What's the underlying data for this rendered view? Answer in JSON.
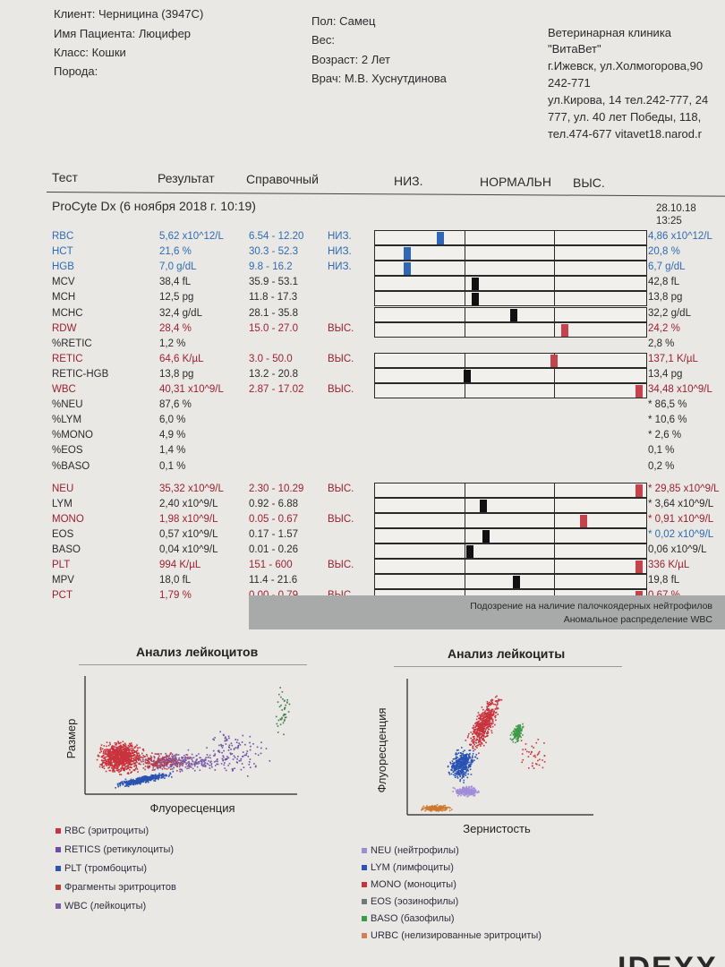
{
  "patient": {
    "client": "Клиент: Черницина (3947С)",
    "name": "Имя Пациента: Люцифер",
    "class": "Класс: Кошки",
    "breed": "Порода:",
    "sex": "Пол: Самец",
    "weight": "Вес:",
    "age": "Возраст: 2 Лет",
    "doctor": "Врач: М.В. Хуснутдинова"
  },
  "clinic": {
    "line1": "Ветеринарная клиника",
    "line2": "\"ВитаВет\"",
    "line3": "г.Ижевск, ул.Холмогорова,90",
    "line4": "242-771",
    "line5": "ул.Кирова, 14 тел.242-777, 24",
    "line6": "777, ул. 40 лет Победы, 118,",
    "line7": "тел.474-677 vitavet18.narod.r"
  },
  "columns": {
    "test": "Тест",
    "result": "Результат",
    "reference": "Справочный",
    "low": "НИЗ.",
    "normal": "НОРМАЛЬН",
    "high": "ВЫС."
  },
  "analyzer": "ProCyte Dx (6 ноября 2018 г. 10:19)",
  "prev_date": "28.10.18",
  "prev_time": "13:25",
  "rows": [
    {
      "test": "RBC",
      "result": "5,62 x10^12/L",
      "ref": "6.54 - 12.20",
      "flag": "НИЗ.",
      "prev": "4,86 x10^12/L",
      "color": "blue",
      "marker": 0.24,
      "mcolor": "#2f67b8"
    },
    {
      "test": "HCT",
      "result": "21,6 %",
      "ref": "30.3 - 52.3",
      "flag": "НИЗ.",
      "prev": "20,8 %",
      "color": "blue",
      "marker": 0.12,
      "mcolor": "#2f67b8"
    },
    {
      "test": "HGB",
      "result": "7,0 g/dL",
      "ref": "9.8 - 16.2",
      "flag": "НИЗ.",
      "prev": "6,7 g/dL",
      "color": "blue",
      "marker": 0.12,
      "mcolor": "#2f67b8"
    },
    {
      "test": "MCV",
      "result": "38,4 fL",
      "ref": "35.9 - 53.1",
      "flag": "",
      "prev": "42,8 fL",
      "color": "dark",
      "marker": 0.37,
      "mcolor": "#111"
    },
    {
      "test": "MCH",
      "result": "12,5 pg",
      "ref": "11.8 - 17.3",
      "flag": "",
      "prev": "13,8 pg",
      "color": "dark",
      "marker": 0.37,
      "mcolor": "#111"
    },
    {
      "test": "MCHC",
      "result": "32,4 g/dL",
      "ref": "28.1 - 35.8",
      "flag": "",
      "prev": "32,2 g/dL",
      "color": "dark",
      "marker": 0.51,
      "mcolor": "#111"
    },
    {
      "test": "RDW",
      "result": "28,4 %",
      "ref": "15.0 - 27.0",
      "flag": "ВЫС.",
      "prev": "24,2 %",
      "color": "red",
      "marker": 0.7,
      "mcolor": "#c4434c"
    },
    {
      "test": "%RETIC",
      "result": "1,2 %",
      "ref": "",
      "flag": "",
      "prev": "2,8 %",
      "color": "dark",
      "marker": null,
      "mcolor": ""
    },
    {
      "test": "RETIC",
      "result": "64,6 K/µL",
      "ref": "3.0 - 50.0",
      "flag": "ВЫС.",
      "prev": "137,1 K/µL",
      "color": "red",
      "marker": 0.66,
      "mcolor": "#c4434c"
    },
    {
      "test": "RETIC-HGB",
      "result": "13,8 pg",
      "ref": "13.2 - 20.8",
      "flag": "",
      "prev": "13,4 pg",
      "color": "dark",
      "marker": 0.34,
      "mcolor": "#111"
    },
    {
      "test": "WBC",
      "result": "40,31 x10^9/L",
      "ref": "2.87 - 17.02",
      "flag": "ВЫС.",
      "prev": "34,48 x10^9/L",
      "color": "red",
      "marker": 0.975,
      "mcolor": "#c4434c"
    },
    {
      "test": "%NEU",
      "result": "87,6 %",
      "ref": "",
      "flag": "",
      "prev": "* 86,5 %",
      "color": "dark",
      "marker": null,
      "mcolor": ""
    },
    {
      "test": "%LYM",
      "result": "6,0 %",
      "ref": "",
      "flag": "",
      "prev": "* 10,6 %",
      "color": "dark",
      "marker": null,
      "mcolor": ""
    },
    {
      "test": "%MONO",
      "result": "4,9 %",
      "ref": "",
      "flag": "",
      "prev": "* 2,6 %",
      "color": "dark",
      "marker": null,
      "mcolor": ""
    },
    {
      "test": "%EOS",
      "result": "1,4 %",
      "ref": "",
      "flag": "",
      "prev": "0,1 %",
      "color": "dark",
      "marker": null,
      "mcolor": ""
    },
    {
      "test": "%BASO",
      "result": "0,1 %",
      "ref": "",
      "flag": "",
      "prev": "0,2 %",
      "color": "dark",
      "marker": null,
      "mcolor": ""
    },
    {
      "test": "NEU",
      "result": "35,32 x10^9/L",
      "ref": "2.30 - 10.29",
      "flag": "ВЫС.",
      "prev": "* 29,85 x10^9/L",
      "color": "red",
      "marker": 0.975,
      "mcolor": "#c4434c"
    },
    {
      "test": "LYM",
      "result": "2,40 x10^9/L",
      "ref": "0.92 - 6.88",
      "flag": "",
      "prev": "* 3,64 x10^9/L",
      "color": "dark",
      "marker": 0.4,
      "mcolor": "#111"
    },
    {
      "test": "MONO",
      "result": "1,98 x10^9/L",
      "ref": "0.05 - 0.67",
      "flag": "ВЫС.",
      "prev": "* 0,91 x10^9/L",
      "color": "red",
      "marker": 0.77,
      "mcolor": "#c4434c"
    },
    {
      "test": "EOS",
      "result": "0,57 x10^9/L",
      "ref": "0.17 - 1.57",
      "flag": "",
      "prev": "* 0,02 x10^9/L",
      "color": "dark",
      "marker": 0.41,
      "mcolor": "#111"
    },
    {
      "test": "BASO",
      "result": "0,04 x10^9/L",
      "ref": "0.01 - 0.26",
      "flag": "",
      "prev": "0,06 x10^9/L",
      "color": "dark",
      "marker": 0.35,
      "mcolor": "#111"
    },
    {
      "test": "PLT",
      "result": "994 K/µL",
      "ref": "151 - 600",
      "flag": "ВЫС.",
      "prev": "336 K/µL",
      "color": "red",
      "marker": 0.975,
      "mcolor": "#c4434c"
    },
    {
      "test": "MPV",
      "result": "18,0 fL",
      "ref": "11.4 - 21.6",
      "flag": "",
      "prev": "19,8 fL",
      "color": "dark",
      "marker": 0.52,
      "mcolor": "#111"
    },
    {
      "test": "PCT",
      "result": "1,79 %",
      "ref": "0.00 - 0.79",
      "flag": "ВЫС.",
      "prev": "0,67 %",
      "color": "red",
      "marker": 0.975,
      "mcolor": "#c4434c"
    }
  ],
  "messages": {
    "line1": "Подозрение на наличие палочкоядерных нейтрофилов",
    "line2": "Аномальное распределение WBC"
  },
  "chart_data": [
    {
      "type": "scatter",
      "title": "Анализ лейкоцитов",
      "xlabel": "Флуоресценция",
      "ylabel": "Размер",
      "grid": false,
      "legend": [
        "RBC (эритроциты)",
        "RETICS (ретикулоциты)",
        "PLT (тромбоциты)",
        "Фрагменты эритроцитов",
        "WBC (лейкоциты)"
      ],
      "legend_colors": [
        "#c2363f",
        "#6a4fa0",
        "#2e55b0",
        "#b6423a",
        "#7a5da8"
      ]
    },
    {
      "type": "scatter",
      "title": "Анализ лейкоциты",
      "xlabel": "Зернистость",
      "ylabel": "Флуоресценция",
      "grid": false,
      "legend": [
        "NEU (нейтрофилы)",
        "LYM (лимфоциты)",
        "MONO (моноциты)",
        "EOS (эозинофилы)",
        "BASO (базофилы)",
        "URBC (нелизированные эритроциты)"
      ],
      "legend_colors": [
        "#9a8fd0",
        "#2e55b0",
        "#c2363f",
        "#6e7a78",
        "#3f9a48",
        "#d0805a"
      ]
    }
  ],
  "footer_logo": "IDEXX"
}
